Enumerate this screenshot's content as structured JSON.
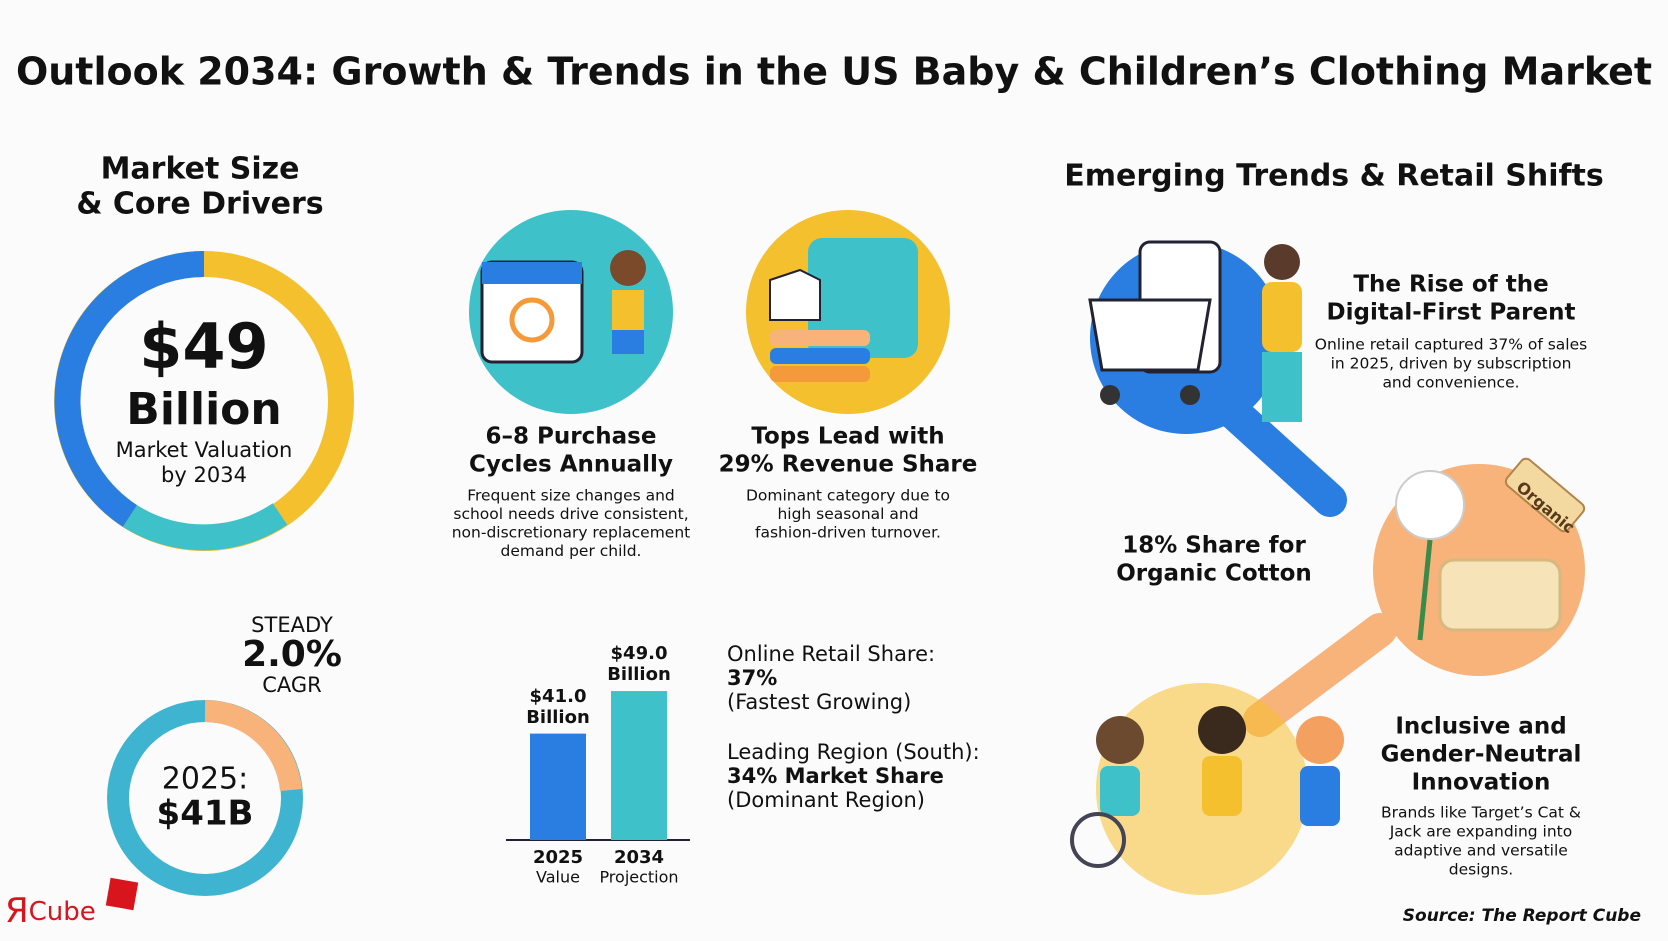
{
  "title": "Outlook 2034: Growth & Trends in the US Baby & Children’s Clothing Market",
  "market": {
    "heading": [
      "Market Size",
      "& Core Drivers"
    ],
    "valuation": {
      "amount": "$49",
      "unit": "Billion",
      "caption": [
        "Market Valuation",
        "by 2034"
      ]
    },
    "cagr": {
      "label": "STEADY",
      "rate": "2.0%",
      "unit": "CAGR"
    },
    "base": {
      "year": "2025:",
      "amount": "$41B"
    }
  },
  "drivers": [
    {
      "title": [
        "6–8 Purchase",
        "Cycles Annually"
      ],
      "text": [
        "Frequent size changes and",
        "school needs drive consistent,",
        "non-discretionary replacement",
        "demand per child."
      ]
    },
    {
      "title": [
        "Tops Lead with",
        "29% Revenue Share"
      ],
      "text": [
        "Dominant category due to",
        "high seasonal and",
        "fashion-driven turnover."
      ]
    }
  ],
  "chart_data": {
    "type": "bar",
    "categories": [
      "2025",
      "2034"
    ],
    "category_notes": [
      "Value",
      "Projection"
    ],
    "values": [
      41.0,
      49.0
    ],
    "value_labels": [
      "$41.0 Billion",
      "$49.0 Billion"
    ],
    "colors": [
      "#2a7de1",
      "#3fc1c9"
    ],
    "ylim": [
      21,
      55
    ]
  },
  "stats": [
    [
      "Online Retail Share:",
      "37%",
      "(Fastest Growing)"
    ],
    [
      "Leading Region (South):",
      "34% Market Share",
      "(Dominant Region)"
    ]
  ],
  "trends": {
    "heading": "Emerging Trends & Retail Shifts",
    "items": [
      {
        "title": [
          "The Rise of the",
          "Digital-First Parent"
        ],
        "text": [
          "Online retail captured 37% of sales",
          "in 2025, driven by subscription",
          "and convenience."
        ]
      },
      {
        "title": [
          "18% Share for",
          "Organic Cotton"
        ],
        "tag": "Organic"
      },
      {
        "title": [
          "Inclusive and",
          "Gender-Neutral",
          "Innovation"
        ],
        "text": [
          "Brands like Target’s Cat &",
          "Jack are expanding into",
          "adaptive and versatile",
          "designs."
        ]
      }
    ]
  },
  "logo": {
    "mark": "Я",
    "name": "Cube"
  },
  "source": "Source: The Report Cube"
}
